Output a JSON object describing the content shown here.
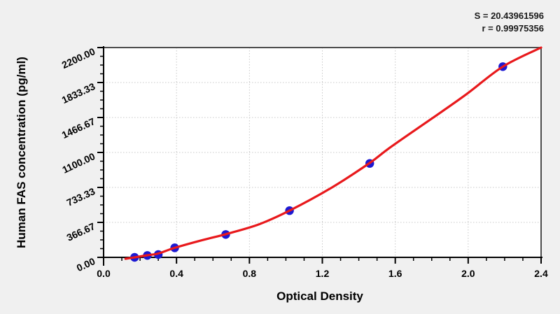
{
  "annotations": {
    "s_text": "S = 20.43961596",
    "r_text": "r = 0.99975356"
  },
  "chart_data": {
    "type": "scatter",
    "title": "",
    "xlabel": "Optical Density",
    "ylabel": "Human FAS concentration (pg/ml)",
    "xlim": [
      0.0,
      2.4
    ],
    "ylim": [
      0,
      2200
    ],
    "x_tick_values": [
      0.0,
      0.4,
      0.8,
      1.2,
      1.6,
      2.0,
      2.4
    ],
    "x_tick_labels": [
      "0.0",
      "0.4",
      "0.8",
      "1.2",
      "1.6",
      "2.0",
      "2.4"
    ],
    "y_tick_values": [
      0,
      366.67,
      733.33,
      1100.0,
      1466.67,
      1833.33,
      2200.0
    ],
    "y_tick_labels": [
      "0.00",
      "366.67",
      "733.33",
      "1100.00",
      "1466.67",
      "1833.33",
      "2200.00"
    ],
    "minor_ticks_per_interval": {
      "x": 3,
      "y": 3
    },
    "grid": "dotted-at-major-ticks",
    "legend": "none",
    "series": [
      {
        "name": "standard-points",
        "type": "scatter",
        "x_optical_density": [
          0.17,
          0.24,
          0.3,
          0.39,
          0.67,
          1.02,
          1.46,
          2.19
        ],
        "y_concentration_pg_ml": [
          0,
          20,
          30,
          100,
          240,
          490,
          985,
          2000
        ]
      },
      {
        "name": "fitted-curve",
        "type": "line",
        "points": [
          [
            0.12,
            -15
          ],
          [
            0.17,
            0
          ],
          [
            0.24,
            22
          ],
          [
            0.3,
            40
          ],
          [
            0.39,
            100
          ],
          [
            0.55,
            185
          ],
          [
            0.67,
            243
          ],
          [
            0.85,
            345
          ],
          [
            1.02,
            490
          ],
          [
            1.25,
            730
          ],
          [
            1.46,
            990
          ],
          [
            1.57,
            1150
          ],
          [
            1.8,
            1455
          ],
          [
            1.99,
            1710
          ],
          [
            2.19,
            2000
          ],
          [
            2.4,
            2200
          ]
        ]
      }
    ],
    "fit_stats": {
      "S": "20.43961596",
      "r": "0.99975356"
    },
    "colors": {
      "background": "#f0f0f0",
      "plot_background": "#ffffff",
      "curve": "#e8191c",
      "points": "#1c19d2",
      "grid": "#c8c8c8",
      "axis": "#000000",
      "frame": "#4d4d4d",
      "text": "#000000"
    }
  }
}
